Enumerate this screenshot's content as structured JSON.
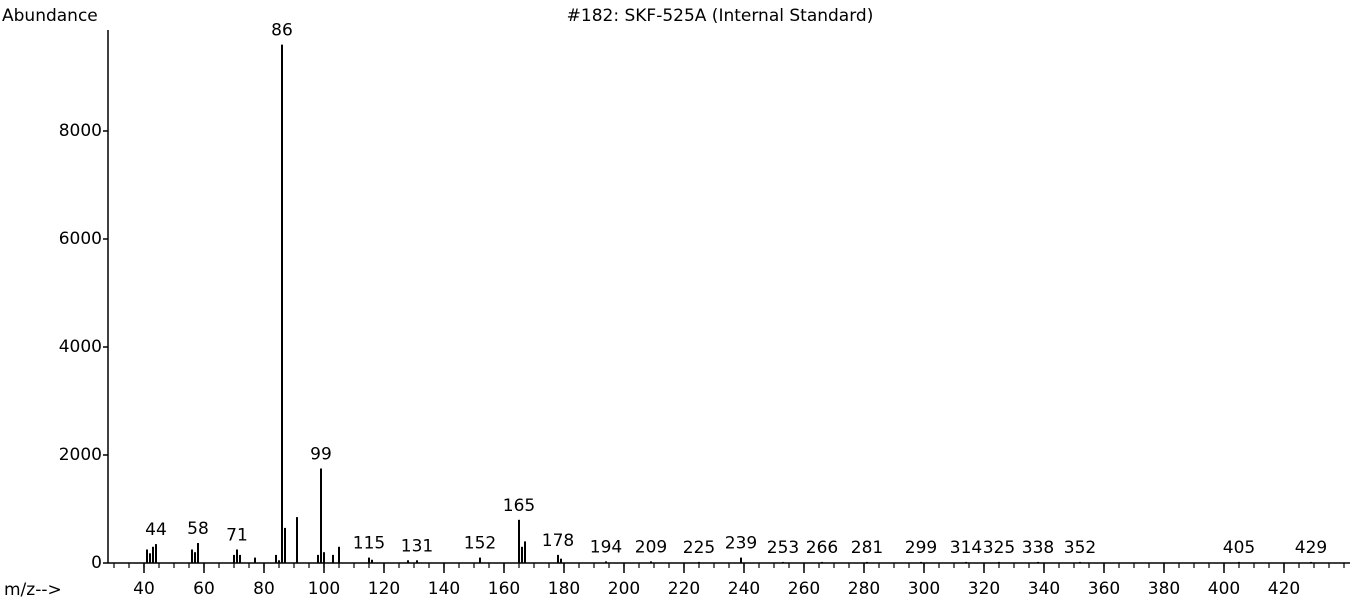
{
  "chart_data": {
    "type": "spectrum",
    "title": "#182: SKF-525A (Internal Standard)",
    "y_label": "Abundance",
    "x_label": "m/z-->",
    "color": "#000000",
    "x": [
      41,
      42,
      43,
      44,
      56,
      57,
      58,
      70,
      71,
      72,
      77,
      84,
      85,
      86,
      87,
      91,
      98,
      99,
      100,
      103,
      105,
      115,
      116,
      128,
      131,
      152,
      165,
      166,
      167,
      178,
      179,
      194,
      209,
      225,
      239,
      253,
      266,
      281,
      299,
      314,
      325,
      338,
      352,
      405,
      429
    ],
    "values": [
      250,
      180,
      300,
      350,
      250,
      200,
      370,
      150,
      250,
      150,
      100,
      150,
      50,
      9600,
      650,
      850,
      150,
      1750,
      200,
      150,
      300,
      100,
      60,
      50,
      50,
      100,
      800,
      300,
      400,
      150,
      80,
      30,
      30,
      20,
      100,
      20,
      20,
      20,
      20,
      20,
      20,
      20,
      20,
      20,
      20
    ],
    "annotations": [
      44,
      58,
      71,
      86,
      99,
      115,
      131,
      152,
      165,
      178,
      194,
      209,
      225,
      239,
      253,
      266,
      281,
      299,
      314,
      325,
      338,
      352,
      405,
      429
    ],
    "xlim": [
      28,
      442
    ],
    "xticks": [
      40,
      60,
      80,
      100,
      120,
      140,
      160,
      180,
      200,
      220,
      240,
      260,
      280,
      300,
      320,
      340,
      360,
      380,
      400,
      420
    ],
    "x_minor_interval": 5,
    "ylim": [
      0,
      9870
    ],
    "yticks": [
      0,
      2000,
      4000,
      6000,
      8000
    ]
  }
}
